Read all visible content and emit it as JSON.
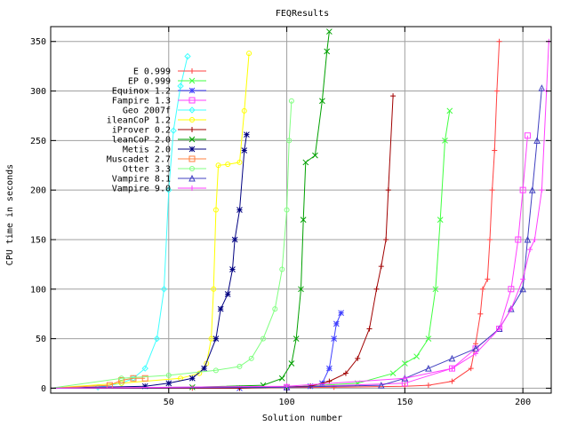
{
  "chart_data": {
    "type": "line",
    "title": "FEQResults",
    "xlabel": "Solution number",
    "ylabel": "CPU time in seconds",
    "xlim": [
      0,
      212
    ],
    "ylim": [
      -5,
      365
    ],
    "xticks": [
      50,
      100,
      150,
      200
    ],
    "yticks": [
      0,
      50,
      100,
      150,
      200,
      250,
      300,
      350
    ],
    "xtick_labels": [
      "50",
      "100",
      "150",
      "200"
    ],
    "ytick_labels": [
      "0",
      "50",
      "100",
      "150",
      "200",
      "250",
      "300",
      "350"
    ],
    "grid": true,
    "legend_position": "top-left",
    "series": [
      {
        "name": "E 0.999",
        "color": "#ff4040",
        "marker": "plus",
        "points": [
          [
            0,
            0
          ],
          [
            60,
            0
          ],
          [
            120,
            1
          ],
          [
            150,
            2
          ],
          [
            160,
            3
          ],
          [
            170,
            7
          ],
          [
            178,
            20
          ],
          [
            180,
            45
          ],
          [
            182,
            75
          ],
          [
            183,
            100
          ],
          [
            185,
            110
          ],
          [
            186,
            150
          ],
          [
            187,
            200
          ],
          [
            188,
            240
          ],
          [
            189,
            300
          ],
          [
            190,
            350
          ]
        ]
      },
      {
        "name": "EP 0.999",
        "color": "#40ff40",
        "marker": "cross",
        "points": [
          [
            0,
            0
          ],
          [
            100,
            1
          ],
          [
            130,
            5
          ],
          [
            145,
            15
          ],
          [
            150,
            25
          ],
          [
            155,
            32
          ],
          [
            160,
            50
          ],
          [
            163,
            100
          ],
          [
            165,
            170
          ],
          [
            167,
            250
          ],
          [
            169,
            280
          ]
        ]
      },
      {
        "name": "Equinox 1.2",
        "color": "#4040ff",
        "marker": "star",
        "points": [
          [
            0,
            0
          ],
          [
            80,
            0
          ],
          [
            110,
            2
          ],
          [
            115,
            5
          ],
          [
            118,
            20
          ],
          [
            120,
            50
          ],
          [
            121,
            65
          ],
          [
            123,
            76
          ]
        ]
      },
      {
        "name": "Fampire 1.3",
        "color": "#ff40ff",
        "marker": "square",
        "points": [
          [
            0,
            0
          ],
          [
            100,
            1
          ],
          [
            150,
            5
          ],
          [
            170,
            20
          ],
          [
            180,
            40
          ],
          [
            190,
            60
          ],
          [
            195,
            100
          ],
          [
            198,
            150
          ],
          [
            200,
            200
          ],
          [
            202,
            255
          ]
        ]
      },
      {
        "name": "Geo 2007f",
        "color": "#40ffff",
        "marker": "diamond",
        "points": [
          [
            0,
            0
          ],
          [
            20,
            1
          ],
          [
            30,
            5
          ],
          [
            35,
            10
          ],
          [
            40,
            20
          ],
          [
            45,
            50
          ],
          [
            48,
            100
          ],
          [
            50,
            200
          ],
          [
            52,
            260
          ],
          [
            55,
            305
          ],
          [
            58,
            335
          ]
        ]
      },
      {
        "name": "ileanCoP 1.2",
        "color": "#ffff00",
        "marker": "circle",
        "points": [
          [
            0,
            0
          ],
          [
            30,
            5
          ],
          [
            55,
            10
          ],
          [
            63,
            15
          ],
          [
            66,
            25
          ],
          [
            68,
            50
          ],
          [
            69,
            100
          ],
          [
            70,
            180
          ],
          [
            71,
            225
          ],
          [
            75,
            226
          ],
          [
            80,
            228
          ],
          [
            82,
            280
          ],
          [
            84,
            338
          ]
        ]
      },
      {
        "name": "iProver 0.2",
        "color": "#a00000",
        "marker": "plus",
        "points": [
          [
            0,
            0
          ],
          [
            80,
            0
          ],
          [
            110,
            2
          ],
          [
            118,
            7
          ],
          [
            125,
            15
          ],
          [
            130,
            30
          ],
          [
            135,
            60
          ],
          [
            138,
            100
          ],
          [
            140,
            123
          ],
          [
            142,
            150
          ],
          [
            143,
            200
          ],
          [
            145,
            295
          ]
        ]
      },
      {
        "name": "leanCoP 2.0",
        "color": "#00a000",
        "marker": "cross",
        "points": [
          [
            0,
            0
          ],
          [
            60,
            1
          ],
          [
            90,
            3
          ],
          [
            98,
            10
          ],
          [
            102,
            25
          ],
          [
            104,
            50
          ],
          [
            106,
            100
          ],
          [
            107,
            170
          ],
          [
            108,
            228
          ],
          [
            112,
            235
          ],
          [
            115,
            290
          ],
          [
            117,
            340
          ],
          [
            118,
            360
          ]
        ]
      },
      {
        "name": "Metis 2.0",
        "color": "#000080",
        "marker": "star",
        "points": [
          [
            0,
            0
          ],
          [
            40,
            2
          ],
          [
            50,
            5
          ],
          [
            60,
            10
          ],
          [
            65,
            20
          ],
          [
            70,
            50
          ],
          [
            72,
            80
          ],
          [
            75,
            95
          ],
          [
            77,
            120
          ],
          [
            78,
            150
          ],
          [
            80,
            180
          ],
          [
            82,
            240
          ],
          [
            83,
            256
          ]
        ]
      },
      {
        "name": "Muscadet 2.7",
        "color": "#ff8040",
        "marker": "square",
        "points": [
          [
            0,
            0
          ],
          [
            25,
            3
          ],
          [
            30,
            8
          ],
          [
            35,
            10
          ],
          [
            40,
            10
          ]
        ]
      },
      {
        "name": "Otter 3.3",
        "color": "#80ff80",
        "marker": "circle",
        "points": [
          [
            0,
            0
          ],
          [
            30,
            10
          ],
          [
            50,
            13
          ],
          [
            70,
            18
          ],
          [
            80,
            22
          ],
          [
            85,
            30
          ],
          [
            90,
            50
          ],
          [
            95,
            80
          ],
          [
            98,
            120
          ],
          [
            100,
            180
          ],
          [
            101,
            250
          ],
          [
            102,
            290
          ]
        ]
      },
      {
        "name": "Vampire 8.1",
        "color": "#4040c0",
        "marker": "triangle",
        "points": [
          [
            0,
            0
          ],
          [
            100,
            1
          ],
          [
            140,
            3
          ],
          [
            150,
            10
          ],
          [
            160,
            20
          ],
          [
            170,
            30
          ],
          [
            180,
            40
          ],
          [
            190,
            60
          ],
          [
            195,
            80
          ],
          [
            200,
            100
          ],
          [
            202,
            150
          ],
          [
            204,
            200
          ],
          [
            206,
            250
          ],
          [
            208,
            303
          ]
        ]
      },
      {
        "name": "Vampire 9.0",
        "color": "#ff40ff",
        "marker": "plus",
        "points": [
          [
            0,
            0
          ],
          [
            100,
            2
          ],
          [
            150,
            10
          ],
          [
            170,
            20
          ],
          [
            180,
            35
          ],
          [
            190,
            60
          ],
          [
            195,
            80
          ],
          [
            200,
            110
          ],
          [
            203,
            140
          ],
          [
            205,
            150
          ],
          [
            208,
            200
          ],
          [
            210,
            300
          ],
          [
            211,
            350
          ]
        ]
      }
    ]
  }
}
